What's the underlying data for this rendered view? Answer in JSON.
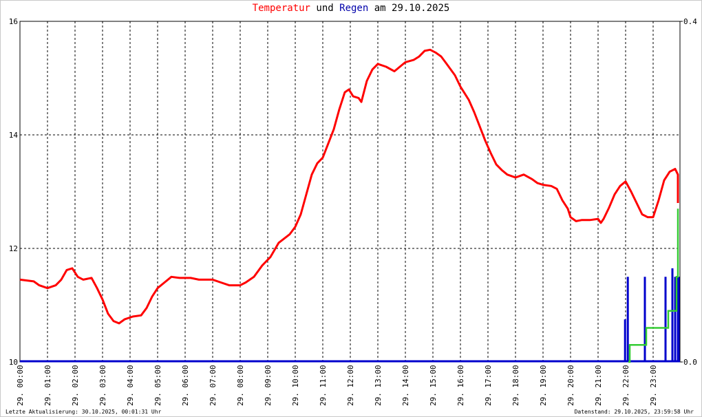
{
  "title": {
    "part1": "Temperatur",
    "part2": "und",
    "part3": "Regen",
    "part4": "am 29.10.2025"
  },
  "footer": {
    "left": "Letzte Aktualisierung: 30.10.2025, 00:01:31 Uhr",
    "right": "Datenstand: 29.10.2025, 23:59:58 Uhr"
  },
  "colors": {
    "temperature": "#ff0000",
    "rain_bars": "#0000cc",
    "rain_cumulative": "#33cc33",
    "grid": "#000000",
    "title_rain": "#0000aa"
  },
  "chart_data": {
    "type": "line",
    "x_range_hours": [
      0,
      24
    ],
    "ylim_left": [
      10,
      16
    ],
    "ylim_right": [
      0.0,
      0.4
    ],
    "yticks_left": [
      "10",
      "12",
      "14",
      "16"
    ],
    "yticks_right": [
      "0.0",
      "0.4"
    ],
    "xtick_labels": [
      "29. 00:00",
      "29. 01:00",
      "29. 02:00",
      "29. 03:00",
      "29. 04:00",
      "29. 05:00",
      "29. 06:00",
      "29. 07:00",
      "29. 08:00",
      "29. 09:00",
      "29. 10:00",
      "29. 11:00",
      "29. 12:00",
      "29. 13:00",
      "29. 14:00",
      "29. 15:00",
      "29. 16:00",
      "29. 17:00",
      "29. 18:00",
      "29. 19:00",
      "29. 20:00",
      "29. 21:00",
      "29. 22:00",
      "29. 23:00"
    ],
    "grid": "dashed",
    "series": [
      {
        "name": "Temperatur",
        "axis": "left",
        "points": [
          [
            0,
            11.45
          ],
          [
            0.5,
            11.42
          ],
          [
            0.7,
            11.35
          ],
          [
            1.0,
            11.3
          ],
          [
            1.3,
            11.35
          ],
          [
            1.5,
            11.45
          ],
          [
            1.7,
            11.62
          ],
          [
            1.9,
            11.65
          ],
          [
            2.1,
            11.5
          ],
          [
            2.3,
            11.45
          ],
          [
            2.6,
            11.48
          ],
          [
            2.8,
            11.3
          ],
          [
            3.0,
            11.1
          ],
          [
            3.2,
            10.85
          ],
          [
            3.4,
            10.72
          ],
          [
            3.6,
            10.68
          ],
          [
            3.8,
            10.75
          ],
          [
            4.1,
            10.8
          ],
          [
            4.4,
            10.82
          ],
          [
            4.6,
            10.95
          ],
          [
            4.8,
            11.15
          ],
          [
            5.0,
            11.3
          ],
          [
            5.2,
            11.38
          ],
          [
            5.5,
            11.5
          ],
          [
            5.8,
            11.48
          ],
          [
            6.2,
            11.48
          ],
          [
            6.5,
            11.45
          ],
          [
            7.0,
            11.45
          ],
          [
            7.3,
            11.4
          ],
          [
            7.6,
            11.35
          ],
          [
            8.0,
            11.35
          ],
          [
            8.2,
            11.4
          ],
          [
            8.5,
            11.5
          ],
          [
            8.8,
            11.7
          ],
          [
            9.1,
            11.85
          ],
          [
            9.4,
            12.1
          ],
          [
            9.8,
            12.25
          ],
          [
            10.0,
            12.38
          ],
          [
            10.2,
            12.6
          ],
          [
            10.4,
            12.95
          ],
          [
            10.6,
            13.3
          ],
          [
            10.8,
            13.5
          ],
          [
            11.0,
            13.6
          ],
          [
            11.2,
            13.85
          ],
          [
            11.4,
            14.1
          ],
          [
            11.6,
            14.45
          ],
          [
            11.8,
            14.75
          ],
          [
            11.95,
            14.8
          ],
          [
            12.1,
            14.68
          ],
          [
            12.3,
            14.65
          ],
          [
            12.4,
            14.58
          ],
          [
            12.6,
            14.95
          ],
          [
            12.8,
            15.15
          ],
          [
            13.0,
            15.25
          ],
          [
            13.3,
            15.2
          ],
          [
            13.6,
            15.12
          ],
          [
            13.8,
            15.2
          ],
          [
            14.0,
            15.28
          ],
          [
            14.3,
            15.32
          ],
          [
            14.5,
            15.38
          ],
          [
            14.7,
            15.48
          ],
          [
            14.9,
            15.5
          ],
          [
            15.1,
            15.45
          ],
          [
            15.3,
            15.38
          ],
          [
            15.5,
            15.25
          ],
          [
            15.8,
            15.05
          ],
          [
            16.0,
            14.85
          ],
          [
            16.3,
            14.62
          ],
          [
            16.5,
            14.4
          ],
          [
            16.7,
            14.15
          ],
          [
            16.9,
            13.9
          ],
          [
            17.1,
            13.68
          ],
          [
            17.3,
            13.48
          ],
          [
            17.5,
            13.38
          ],
          [
            17.7,
            13.3
          ],
          [
            18.0,
            13.25
          ],
          [
            18.3,
            13.3
          ],
          [
            18.6,
            13.22
          ],
          [
            18.8,
            13.15
          ],
          [
            19.0,
            13.12
          ],
          [
            19.3,
            13.1
          ],
          [
            19.5,
            13.05
          ],
          [
            19.7,
            12.85
          ],
          [
            19.9,
            12.7
          ],
          [
            20.0,
            12.55
          ],
          [
            20.2,
            12.48
          ],
          [
            20.4,
            12.5
          ],
          [
            20.7,
            12.5
          ],
          [
            21.0,
            12.52
          ],
          [
            21.1,
            12.45
          ],
          [
            21.2,
            12.52
          ],
          [
            21.4,
            12.72
          ],
          [
            21.6,
            12.95
          ],
          [
            21.8,
            13.1
          ],
          [
            22.0,
            13.18
          ],
          [
            22.2,
            13.0
          ],
          [
            22.4,
            12.8
          ],
          [
            22.6,
            12.6
          ],
          [
            22.8,
            12.55
          ],
          [
            23.0,
            12.55
          ],
          [
            23.2,
            12.85
          ],
          [
            23.4,
            13.2
          ],
          [
            23.6,
            13.35
          ],
          [
            23.8,
            13.4
          ],
          [
            24.0,
            13.3
          ],
          [
            24.2,
            13.1
          ],
          [
            24.35,
            12.95
          ],
          [
            24.45,
            12.8
          ]
        ]
      },
      {
        "name": "Regen",
        "axis": "right",
        "kind": "bars",
        "bars": [
          [
            21.98,
            0.05
          ],
          [
            22.08,
            0.1
          ],
          [
            22.7,
            0.1
          ],
          [
            23.45,
            0.1
          ],
          [
            23.7,
            0.11
          ],
          [
            23.8,
            0.1
          ],
          [
            23.9,
            0.1
          ],
          [
            24.0,
            0.1
          ],
          [
            24.1,
            0.07
          ],
          [
            24.2,
            0.1
          ],
          [
            24.3,
            0.1
          ],
          [
            24.4,
            0.05
          ]
        ]
      },
      {
        "name": "Regen kumuliert",
        "axis": "right",
        "kind": "step",
        "points": [
          [
            22.1,
            0.0
          ],
          [
            22.15,
            0.02
          ],
          [
            22.7,
            0.02
          ],
          [
            22.75,
            0.04
          ],
          [
            23.4,
            0.04
          ],
          [
            23.55,
            0.06
          ],
          [
            23.8,
            0.06
          ],
          [
            23.85,
            0.1
          ],
          [
            24.0,
            0.12
          ],
          [
            24.15,
            0.14
          ],
          [
            24.3,
            0.16
          ],
          [
            24.4,
            0.18
          ]
        ]
      }
    ]
  }
}
